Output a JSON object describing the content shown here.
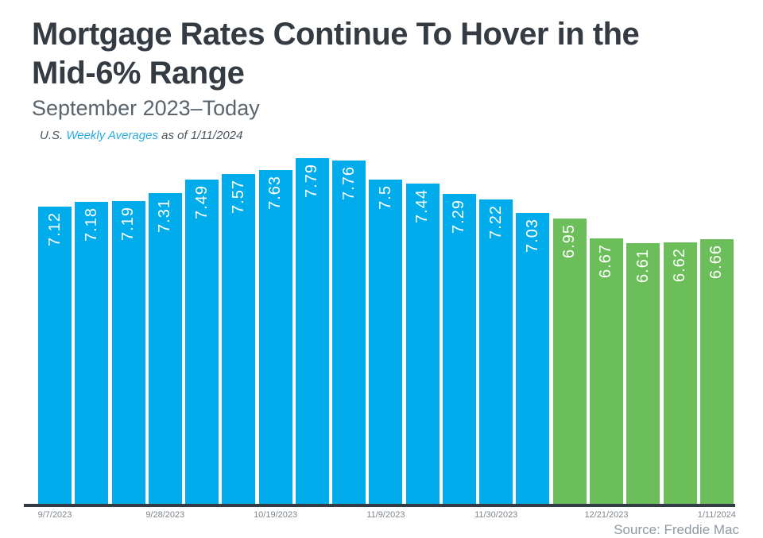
{
  "header": {
    "title_line1": "Mortgage Rates Continue To Hover in the",
    "title_line2": "Mid-6% Range",
    "subtitle": "September 2023–Today",
    "attribution": {
      "prefix": "U.S. ",
      "link_text": "Weekly Averages",
      "suffix": " as of 1/11/2024"
    }
  },
  "footer": {
    "source": "Source: Freddie Mac"
  },
  "chart_data": {
    "type": "bar",
    "title": "Mortgage Rates Continue To Hover in the Mid-6% Range",
    "subtitle": "September 2023–Today",
    "xlabel": "",
    "ylabel": "",
    "values": [
      7.12,
      7.18,
      7.19,
      7.31,
      7.49,
      7.57,
      7.63,
      7.79,
      7.76,
      7.5,
      7.44,
      7.29,
      7.22,
      7.03,
      6.95,
      6.67,
      6.61,
      6.62,
      6.66
    ],
    "bar_labels": [
      "7.12",
      "7.18",
      "7.19",
      "7.31",
      "7.49",
      "7.57",
      "7.63",
      "7.79",
      "7.76",
      "7.5",
      "7.44",
      "7.29",
      "7.22",
      "7.03",
      "6.95",
      "6.67",
      "6.61",
      "6.62",
      "6.66"
    ],
    "tick_labels": [
      "9/7/2023",
      "9/28/2023",
      "10/19/2023",
      "11/9/2023",
      "11/30/2023",
      "12/21/2023",
      "1/11/2024"
    ],
    "tick_positions": [
      0,
      3,
      6,
      9,
      12,
      15,
      18
    ],
    "ylim": [
      2.95,
      7.95
    ],
    "grid": false,
    "legend": false,
    "value_labels_rotated": true,
    "color_threshold": 7,
    "color_above_hex": "#00acec",
    "color_below_hex": "#6bbe59",
    "value_label_color_hex": "#ffffff",
    "axis_line_color_hex": "#333b44"
  }
}
